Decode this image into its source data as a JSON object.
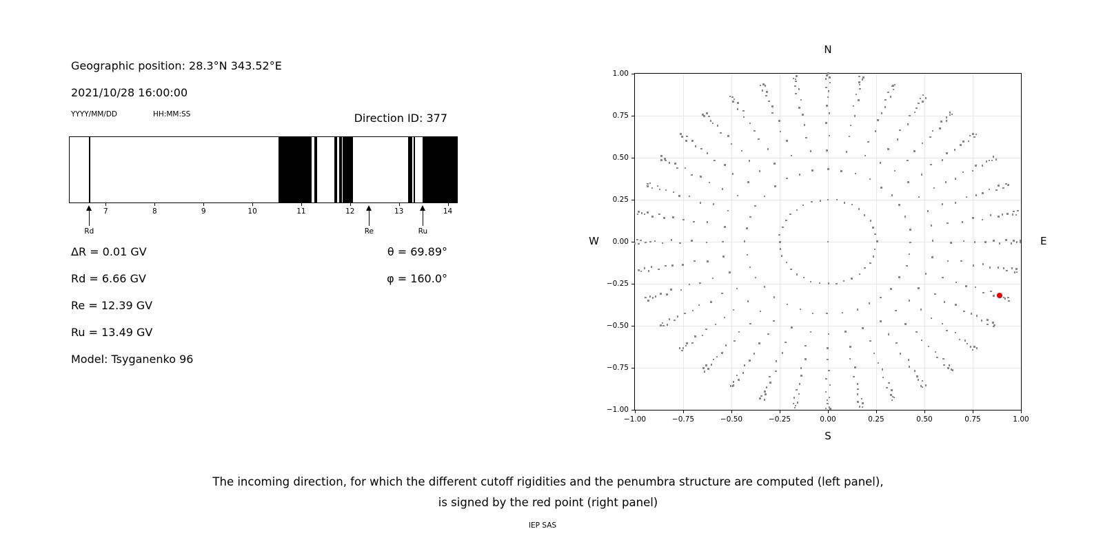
{
  "left_panel": {
    "geo_position": "Geographic position: 28.3°N 343.52°E",
    "datetime": "2021/10/28 16:00:00",
    "date_format_label": "YYYY/MM/DD",
    "time_format_label": "HH:MM:SS",
    "direction_id_label": "Direction ID: 377",
    "delta_r": "ΔR = 0.01 GV",
    "rd": "Rd = 6.66 GV",
    "re": "Re = 12.39 GV",
    "ru": "Ru = 13.49 GV",
    "model": "Model: Tsyganenko 96",
    "theta": "θ = 69.89°",
    "phi": "φ = 160.0°"
  },
  "caption": {
    "line1": "The incoming direction, for which the different cutoff rigidities and the penumbra structure are computed (left panel),",
    "line2": "is signed by the red point (right panel)",
    "credit": "IEP SAS"
  },
  "chart_data": [
    {
      "type": "bar",
      "panel": "left-penumbra-structure",
      "description": "Penumbra structure: black bands mark rigidity intervals (GV)",
      "x_range_GV": [
        6.26,
        14.19
      ],
      "x_tick_values": [
        7,
        8,
        9,
        10,
        11,
        12,
        13,
        14
      ],
      "x_tick_labels": [
        "7",
        "8",
        "9",
        "10",
        "11",
        "12",
        "13",
        "14"
      ],
      "bands_GV": [
        [
          6.65,
          6.69
        ],
        [
          10.53,
          11.21
        ],
        [
          11.27,
          11.33
        ],
        [
          11.68,
          11.73
        ],
        [
          11.77,
          11.83
        ],
        [
          11.85,
          12.06
        ],
        [
          13.19,
          13.27
        ],
        [
          13.3,
          13.33
        ],
        [
          13.49,
          14.19
        ]
      ],
      "arrows": [
        {
          "label": "Rd",
          "value_GV": 6.66
        },
        {
          "label": "Re",
          "value_GV": 12.39
        },
        {
          "label": "Ru",
          "value_GV": 13.49
        }
      ],
      "band_color": "#000000"
    },
    {
      "type": "scatter",
      "panel": "right-direction-grid",
      "description": "Grid of incoming directions (N up, E right); red point = selected direction",
      "xlim": [
        -1,
        1
      ],
      "ylim": [
        -1,
        1
      ],
      "tick_values": [
        -1,
        -0.75,
        -0.5,
        -0.25,
        0,
        0.25,
        0.5,
        0.75,
        1
      ],
      "tick_labels": [
        "−1.00",
        "−0.75",
        "−0.50",
        "−0.25",
        "0.00",
        "0.25",
        "0.50",
        "0.75",
        "1.00"
      ],
      "compass_labels": {
        "top": "N",
        "bottom": "S",
        "left": "W",
        "right": "E"
      },
      "ring_radii": [
        0.251,
        0.429,
        0.545,
        0.633,
        0.704,
        0.764,
        0.814,
        0.857,
        0.893,
        0.922,
        0.946,
        0.966,
        0.981,
        0.992,
        0.998
      ],
      "n_azimuths": 36,
      "center_dot": true,
      "grid": true,
      "dot_color": "#878787",
      "grid_color": "#e8e8e8",
      "red_point": {
        "x": 0.89,
        "y": -0.32,
        "theta_deg": 69.89,
        "phi_deg": 160.0,
        "color": "#e60000"
      }
    }
  ]
}
